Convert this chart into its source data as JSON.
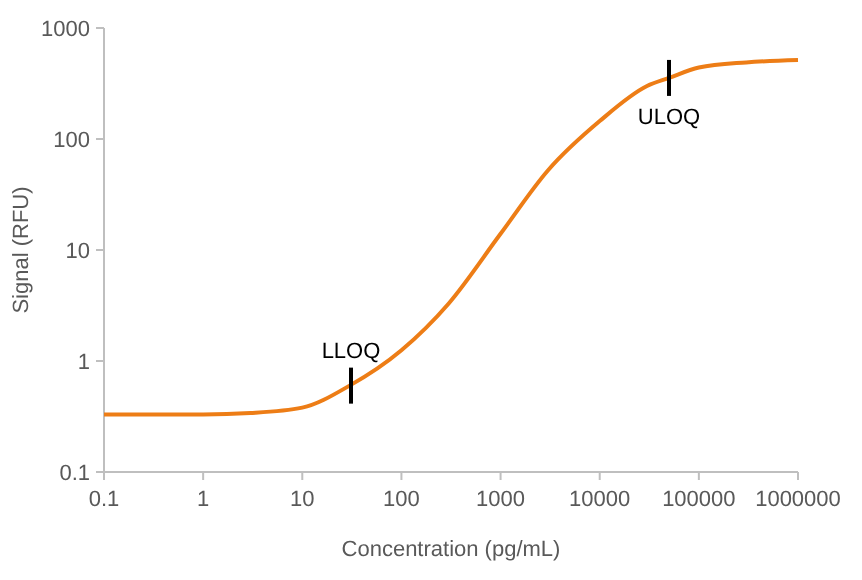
{
  "chart_data": {
    "type": "line",
    "xlabel": "Concentration (pg/mL)",
    "ylabel": "Signal (RFU)",
    "log": "xy",
    "grid": false,
    "marker": "none",
    "line_style": "solid",
    "xlim": [
      0.1,
      1000000
    ],
    "xticks": [
      0.1,
      1,
      10,
      100,
      1000,
      10000,
      100000,
      1000000
    ],
    "ylim": [
      0.1,
      1000
    ],
    "yticks": [
      0.1,
      1,
      10,
      100,
      1000
    ],
    "series": [
      {
        "color": "#ed7d16",
        "x": [
          0.1,
          1,
          3,
          10,
          30,
          100,
          300,
          1000,
          3000,
          10000,
          30000,
          50000,
          100000,
          300000,
          1000000
        ],
        "values": [
          0.33,
          0.33,
          0.34,
          0.38,
          0.6,
          1.25,
          3.3,
          14,
          52,
          145,
          300,
          355,
          440,
          490,
          515
        ]
      }
    ],
    "annotations": [
      {
        "text": "LLOQ",
        "x": 31,
        "y": 0.6
      },
      {
        "text": "ULOQ",
        "x": 50000,
        "y": 355
      }
    ]
  }
}
